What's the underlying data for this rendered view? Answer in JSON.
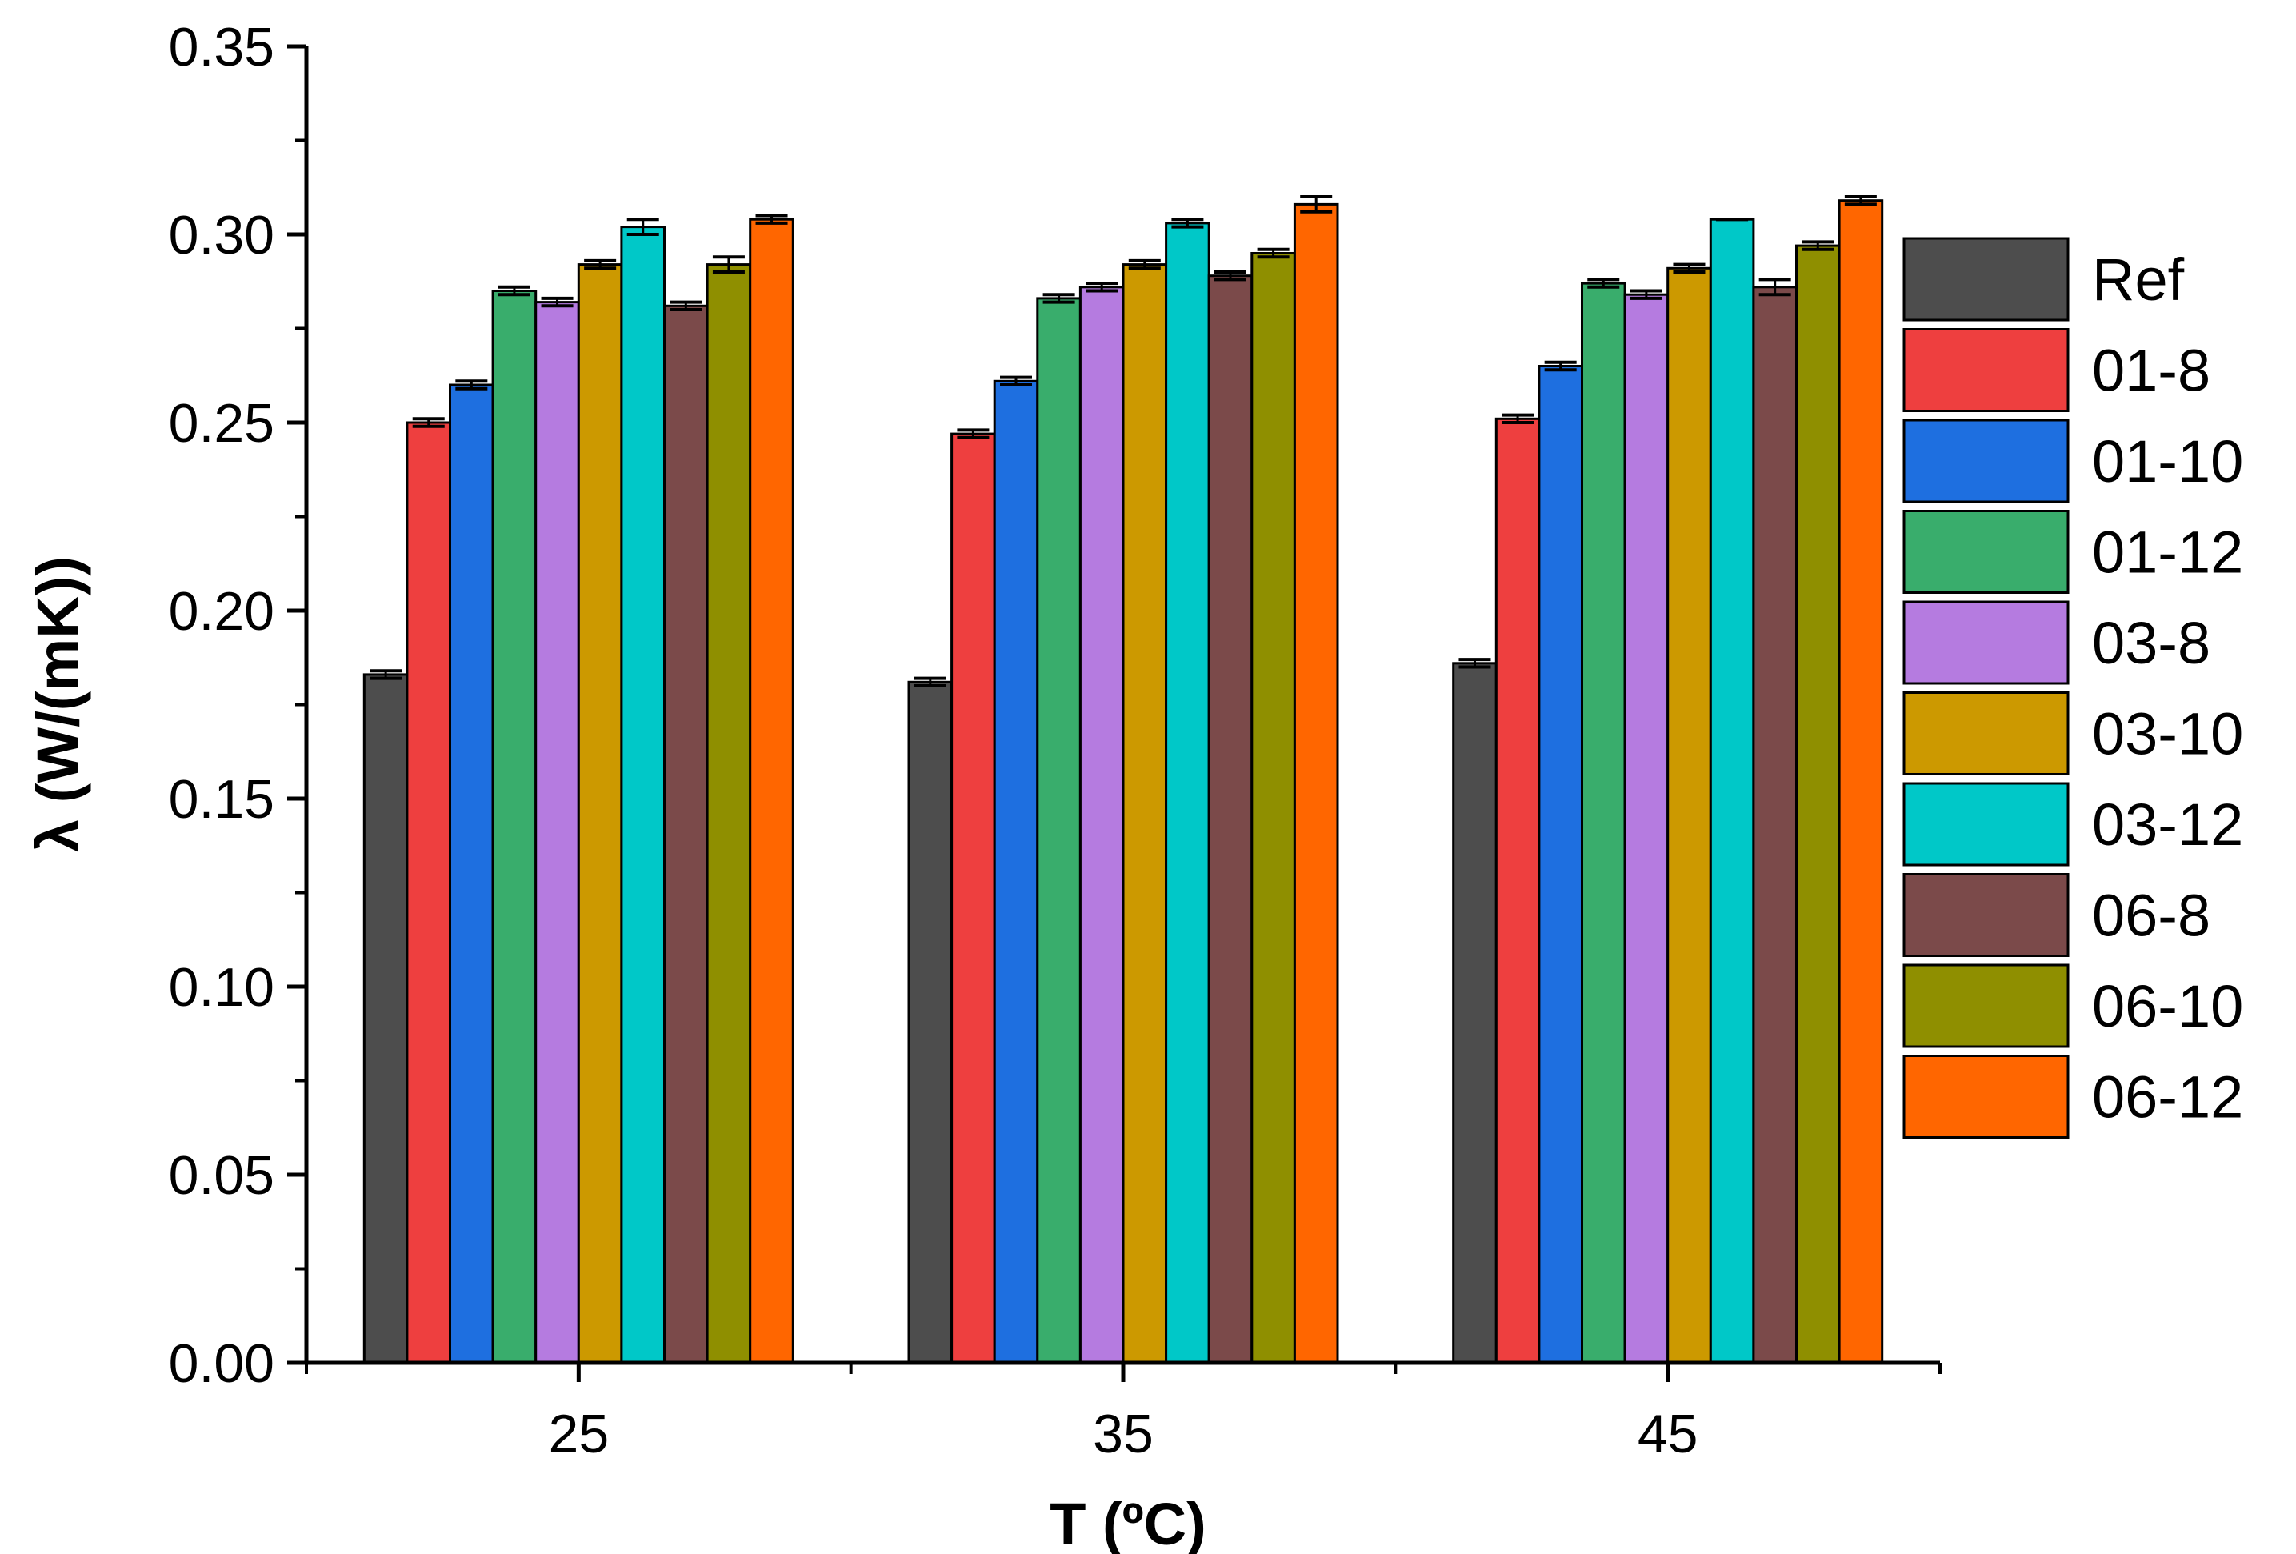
{
  "chart_data": {
    "type": "bar",
    "title": "",
    "xlabel": "T (ºC)",
    "ylabel": "λ (W/(mK))",
    "categories": [
      "25",
      "35",
      "45"
    ],
    "ylim": [
      0.0,
      0.35
    ],
    "yticks": [
      "0.00",
      "0.05",
      "0.10",
      "0.15",
      "0.20",
      "0.25",
      "0.30",
      "0.35"
    ],
    "legend_position": "right",
    "series": [
      {
        "name": "Ref",
        "color": "#4d4d4d",
        "values": [
          0.183,
          0.181,
          0.186
        ],
        "errors": [
          0.001,
          0.001,
          0.001
        ]
      },
      {
        "name": "01-8",
        "color": "#ee3f3f",
        "values": [
          0.25,
          0.247,
          0.251
        ],
        "errors": [
          0.001,
          0.001,
          0.001
        ]
      },
      {
        "name": "01-10",
        "color": "#1e6fe0",
        "values": [
          0.26,
          0.261,
          0.265
        ],
        "errors": [
          0.001,
          0.001,
          0.001
        ]
      },
      {
        "name": "01-12",
        "color": "#39ad6c",
        "values": [
          0.285,
          0.283,
          0.287
        ],
        "errors": [
          0.001,
          0.001,
          0.001
        ]
      },
      {
        "name": "03-8",
        "color": "#b57be0",
        "values": [
          0.282,
          0.286,
          0.284
        ],
        "errors": [
          0.001,
          0.001,
          0.001
        ]
      },
      {
        "name": "03-10",
        "color": "#cc9900",
        "values": [
          0.292,
          0.292,
          0.291
        ],
        "errors": [
          0.001,
          0.001,
          0.001
        ]
      },
      {
        "name": "03-12",
        "color": "#00c8c8",
        "values": [
          0.302,
          0.303,
          0.304
        ],
        "errors": [
          0.002,
          0.001,
          0.0
        ]
      },
      {
        "name": "06-8",
        "color": "#7b4a4a",
        "values": [
          0.281,
          0.289,
          0.286
        ],
        "errors": [
          0.001,
          0.001,
          0.002
        ]
      },
      {
        "name": "06-10",
        "color": "#8f8f00",
        "values": [
          0.292,
          0.295,
          0.297
        ],
        "errors": [
          0.002,
          0.001,
          0.001
        ]
      },
      {
        "name": "06-12",
        "color": "#ff6600",
        "values": [
          0.304,
          0.308,
          0.309
        ],
        "errors": [
          0.001,
          0.002,
          0.001
        ]
      }
    ]
  }
}
